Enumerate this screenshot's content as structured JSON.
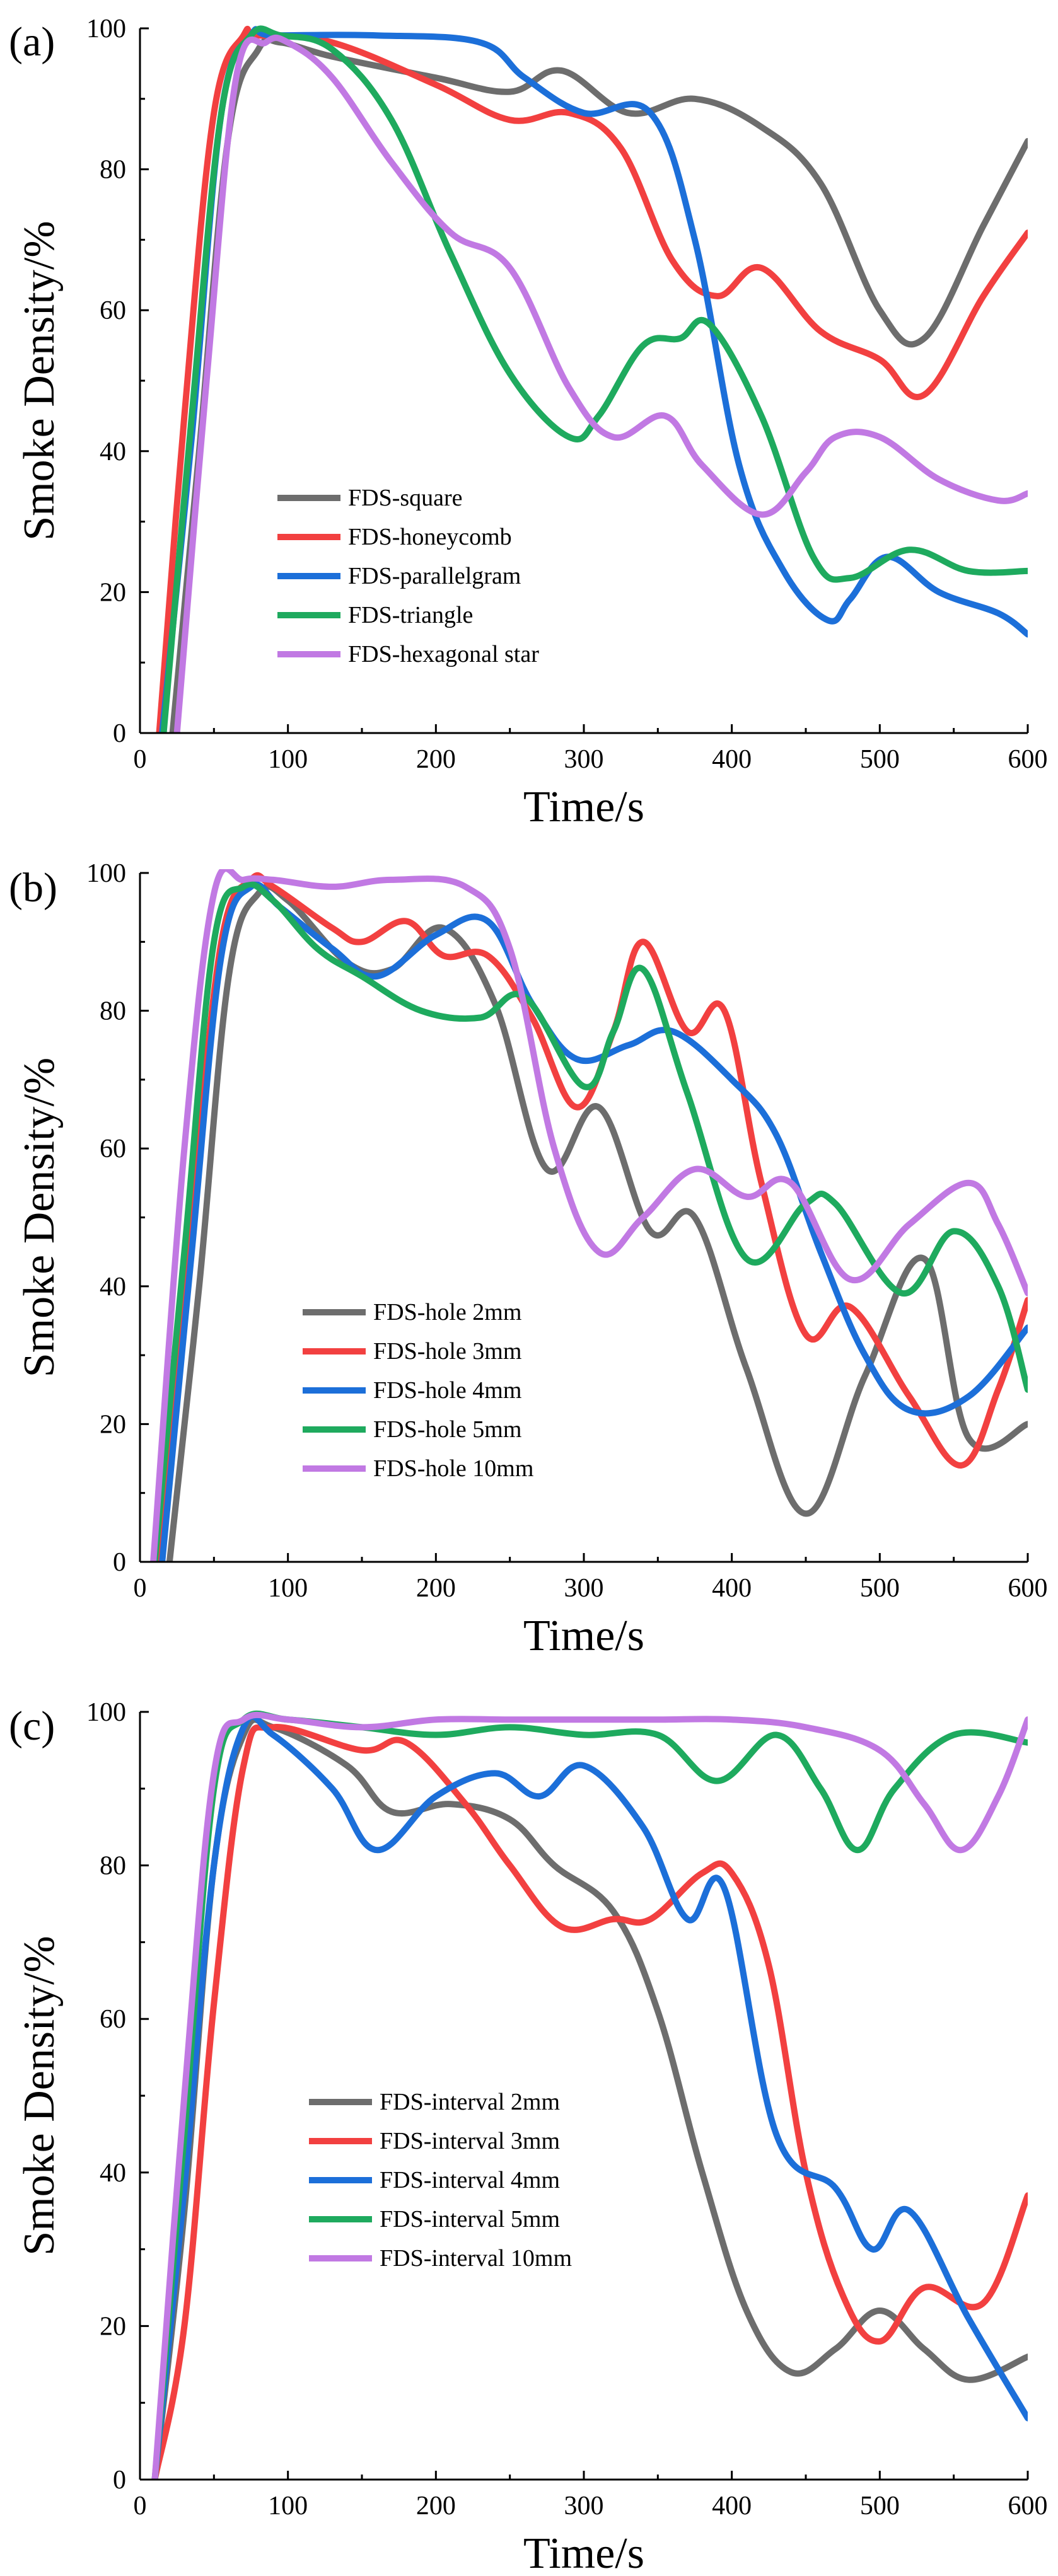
{
  "figure": {
    "panels": [
      "(a)",
      "(b)",
      "(c)"
    ]
  },
  "chart_data": [
    {
      "type": "line",
      "panel": "(a)",
      "title": "",
      "xlabel": "Time/s",
      "ylabel": "Smoke Density/%",
      "xlim": [
        0,
        600
      ],
      "ylim": [
        0,
        100
      ],
      "xticks": [
        0,
        100,
        200,
        300,
        400,
        500,
        600
      ],
      "yticks": [
        0,
        20,
        40,
        60,
        80,
        100
      ],
      "legend_position": "lower-left",
      "series": [
        {
          "name": "FDS-square",
          "color": "#6d6d6d",
          "x": [
            22,
            40,
            60,
            80,
            95,
            130,
            200,
            250,
            285,
            330,
            375,
            420,
            460,
            500,
            530,
            570,
            600
          ],
          "y": [
            0,
            40,
            85,
            97,
            98,
            96,
            93,
            91,
            94,
            88,
            90,
            86,
            78,
            60,
            56,
            72,
            84
          ]
        },
        {
          "name": "FDS-honeycomb",
          "color": "#f24040",
          "x": [
            13,
            30,
            50,
            70,
            80,
            130,
            200,
            250,
            290,
            325,
            360,
            390,
            420,
            460,
            500,
            530,
            570,
            600
          ],
          "y": [
            0,
            45,
            88,
            99,
            99,
            98,
            92,
            87,
            88,
            83,
            67,
            62,
            66,
            57,
            53,
            48,
            62,
            71
          ]
        },
        {
          "name": "FDS-parallelgram",
          "color": "#1c6fd9",
          "x": [
            15,
            35,
            55,
            75,
            90,
            160,
            230,
            260,
            300,
            345,
            375,
            405,
            435,
            465,
            480,
            505,
            540,
            580,
            600
          ],
          "y": [
            0,
            42,
            88,
            99,
            99,
            99,
            98,
            93,
            88,
            88,
            70,
            38,
            23,
            16,
            19,
            25,
            20,
            17,
            14
          ]
        },
        {
          "name": "FDS-triangle",
          "color": "#1eaa5e",
          "x": [
            16,
            35,
            55,
            75,
            95,
            130,
            170,
            210,
            250,
            290,
            310,
            340,
            365,
            385,
            420,
            455,
            480,
            520,
            560,
            600
          ],
          "y": [
            0,
            45,
            88,
            99,
            99,
            97,
            87,
            68,
            51,
            42,
            45,
            55,
            56,
            58,
            45,
            25,
            22,
            26,
            23,
            23
          ]
        },
        {
          "name": "FDS-hexagonal star",
          "color": "#c179e3",
          "x": [
            25,
            45,
            65,
            85,
            100,
            130,
            170,
            210,
            250,
            290,
            320,
            355,
            380,
            420,
            450,
            470,
            500,
            540,
            580,
            600
          ],
          "y": [
            0,
            50,
            93,
            98,
            98,
            93,
            81,
            71,
            66,
            49,
            42,
            45,
            38,
            31,
            37,
            42,
            42,
            36,
            33,
            34
          ]
        }
      ]
    },
    {
      "type": "line",
      "panel": "(b)",
      "title": "",
      "xlabel": "Time/s",
      "ylabel": "Smoke Density/%",
      "xlim": [
        0,
        600
      ],
      "ylim": [
        0,
        100
      ],
      "xticks": [
        0,
        100,
        200,
        300,
        400,
        500,
        600
      ],
      "yticks": [
        0,
        20,
        40,
        60,
        80,
        100
      ],
      "legend_position": "lower-left",
      "series": [
        {
          "name": "FDS-hole 2mm",
          "color": "#6d6d6d",
          "x": [
            20,
            40,
            60,
            80,
            100,
            140,
            170,
            205,
            240,
            275,
            310,
            345,
            375,
            410,
            450,
            490,
            530,
            560,
            600
          ],
          "y": [
            0,
            40,
            85,
            97,
            96,
            87,
            86,
            92,
            81,
            57,
            66,
            48,
            50,
            28,
            7,
            27,
            44,
            18,
            20
          ]
        },
        {
          "name": "FDS-hole 3mm",
          "color": "#f24040",
          "x": [
            13,
            35,
            55,
            75,
            90,
            130,
            150,
            180,
            205,
            235,
            265,
            295,
            320,
            340,
            370,
            395,
            420,
            450,
            480,
            520,
            555,
            580,
            600
          ],
          "y": [
            0,
            50,
            90,
            99,
            98,
            92,
            90,
            93,
            88,
            88,
            79,
            66,
            77,
            90,
            77,
            80,
            55,
            33,
            37,
            24,
            14,
            25,
            38
          ]
        },
        {
          "name": "FDS-hole 4mm",
          "color": "#1c6fd9",
          "x": [
            15,
            35,
            55,
            75,
            95,
            130,
            160,
            200,
            235,
            265,
            295,
            330,
            360,
            400,
            430,
            460,
            490,
            520,
            560,
            600
          ],
          "y": [
            0,
            45,
            88,
            98,
            95,
            89,
            85,
            91,
            93,
            81,
            73,
            75,
            77,
            70,
            62,
            45,
            30,
            22,
            24,
            34
          ]
        },
        {
          "name": "FDS-hole 5mm",
          "color": "#1eaa5e",
          "x": [
            10,
            30,
            50,
            70,
            90,
            120,
            150,
            190,
            230,
            260,
            300,
            320,
            340,
            370,
            410,
            450,
            470,
            515,
            550,
            580,
            600
          ],
          "y": [
            0,
            45,
            90,
            98,
            96,
            89,
            85,
            80,
            79,
            82,
            69,
            77,
            86,
            68,
            44,
            52,
            52,
            39,
            48,
            40,
            25
          ]
        },
        {
          "name": "FDS-hole 10mm",
          "color": "#c179e3",
          "x": [
            9,
            30,
            50,
            70,
            90,
            130,
            170,
            220,
            250,
            280,
            310,
            340,
            375,
            410,
            440,
            480,
            520,
            560,
            580,
            600
          ],
          "y": [
            0,
            60,
            97,
            99,
            99,
            98,
            99,
            98,
            89,
            60,
            45,
            50,
            57,
            53,
            55,
            41,
            49,
            55,
            49,
            39
          ]
        }
      ]
    },
    {
      "type": "line",
      "panel": "(c)",
      "title": "",
      "xlabel": "Time/s",
      "ylabel": "Smoke Density/%",
      "xlim": [
        0,
        600
      ],
      "ylim": [
        0,
        100
      ],
      "xticks": [
        0,
        100,
        200,
        300,
        400,
        500,
        600
      ],
      "yticks": [
        0,
        20,
        40,
        60,
        80,
        100
      ],
      "legend_position": "lower-left",
      "series": [
        {
          "name": "FDS-interval 2mm",
          "color": "#6d6d6d",
          "x": [
            10,
            30,
            50,
            70,
            90,
            140,
            170,
            210,
            250,
            280,
            320,
            350,
            380,
            410,
            440,
            470,
            500,
            530,
            560,
            600
          ],
          "y": [
            0,
            35,
            80,
            97,
            98,
            93,
            87,
            88,
            86,
            80,
            74,
            61,
            40,
            22,
            14,
            17,
            22,
            17,
            13,
            16
          ]
        },
        {
          "name": "FDS-interval 3mm",
          "color": "#f24040",
          "x": [
            10,
            30,
            50,
            70,
            90,
            150,
            180,
            220,
            250,
            285,
            320,
            345,
            380,
            400,
            425,
            450,
            475,
            500,
            530,
            570,
            600
          ],
          "y": [
            0,
            20,
            62,
            93,
            98,
            95,
            96,
            88,
            80,
            72,
            73,
            73,
            79,
            79,
            67,
            40,
            24,
            18,
            25,
            23,
            37
          ]
        },
        {
          "name": "FDS-interval 4mm",
          "color": "#1c6fd9",
          "x": [
            10,
            30,
            50,
            70,
            90,
            130,
            160,
            200,
            240,
            270,
            300,
            340,
            370,
            395,
            430,
            470,
            495,
            520,
            560,
            600
          ],
          "y": [
            0,
            38,
            80,
            98,
            97,
            90,
            82,
            89,
            92,
            89,
            93,
            85,
            73,
            77,
            45,
            38,
            30,
            35,
            21,
            8
          ]
        },
        {
          "name": "FDS-interval 5mm",
          "color": "#1eaa5e",
          "x": [
            10,
            30,
            50,
            70,
            100,
            150,
            200,
            250,
            300,
            350,
            390,
            430,
            460,
            485,
            510,
            550,
            600
          ],
          "y": [
            0,
            45,
            90,
            99,
            99,
            98,
            97,
            98,
            97,
            97,
            91,
            97,
            90,
            82,
            90,
            97,
            96
          ]
        },
        {
          "name": "FDS-interval 10mm",
          "color": "#c179e3",
          "x": [
            10,
            30,
            50,
            70,
            100,
            150,
            200,
            250,
            300,
            350,
            400,
            450,
            500,
            530,
            555,
            580,
            600
          ],
          "y": [
            0,
            50,
            92,
            99,
            99,
            98,
            99,
            99,
            99,
            99,
            99,
            98,
            95,
            88,
            82,
            89,
            99
          ]
        }
      ]
    }
  ]
}
